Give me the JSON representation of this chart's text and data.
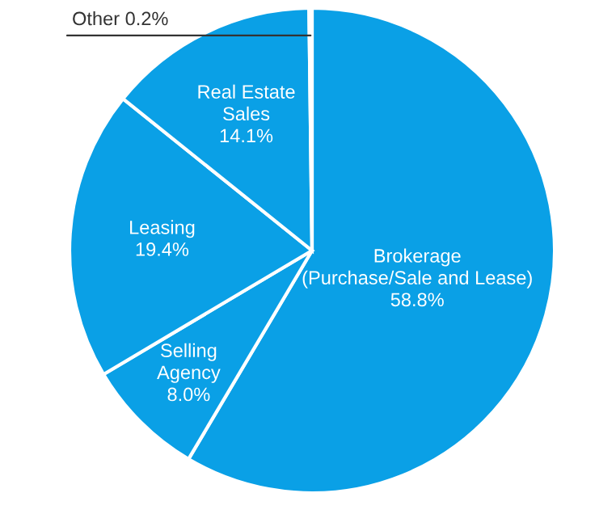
{
  "chart_data": {
    "type": "pie",
    "categories": [
      "Brokerage\n(Purchase/Sale and Lease)",
      "Selling\nAgency",
      "Leasing",
      "Real Estate\nSales",
      "Other"
    ],
    "values": [
      58.8,
      8.0,
      19.4,
      14.1,
      0.2
    ],
    "value_labels": [
      "58.8%",
      "8.0%",
      "19.4%",
      "14.1%",
      "0.2%"
    ],
    "colors": [
      "#0aa0e6",
      "#0aa0e6",
      "#0aa0e6",
      "#0aa0e6",
      "#0aa0e6"
    ],
    "legend": false
  }
}
